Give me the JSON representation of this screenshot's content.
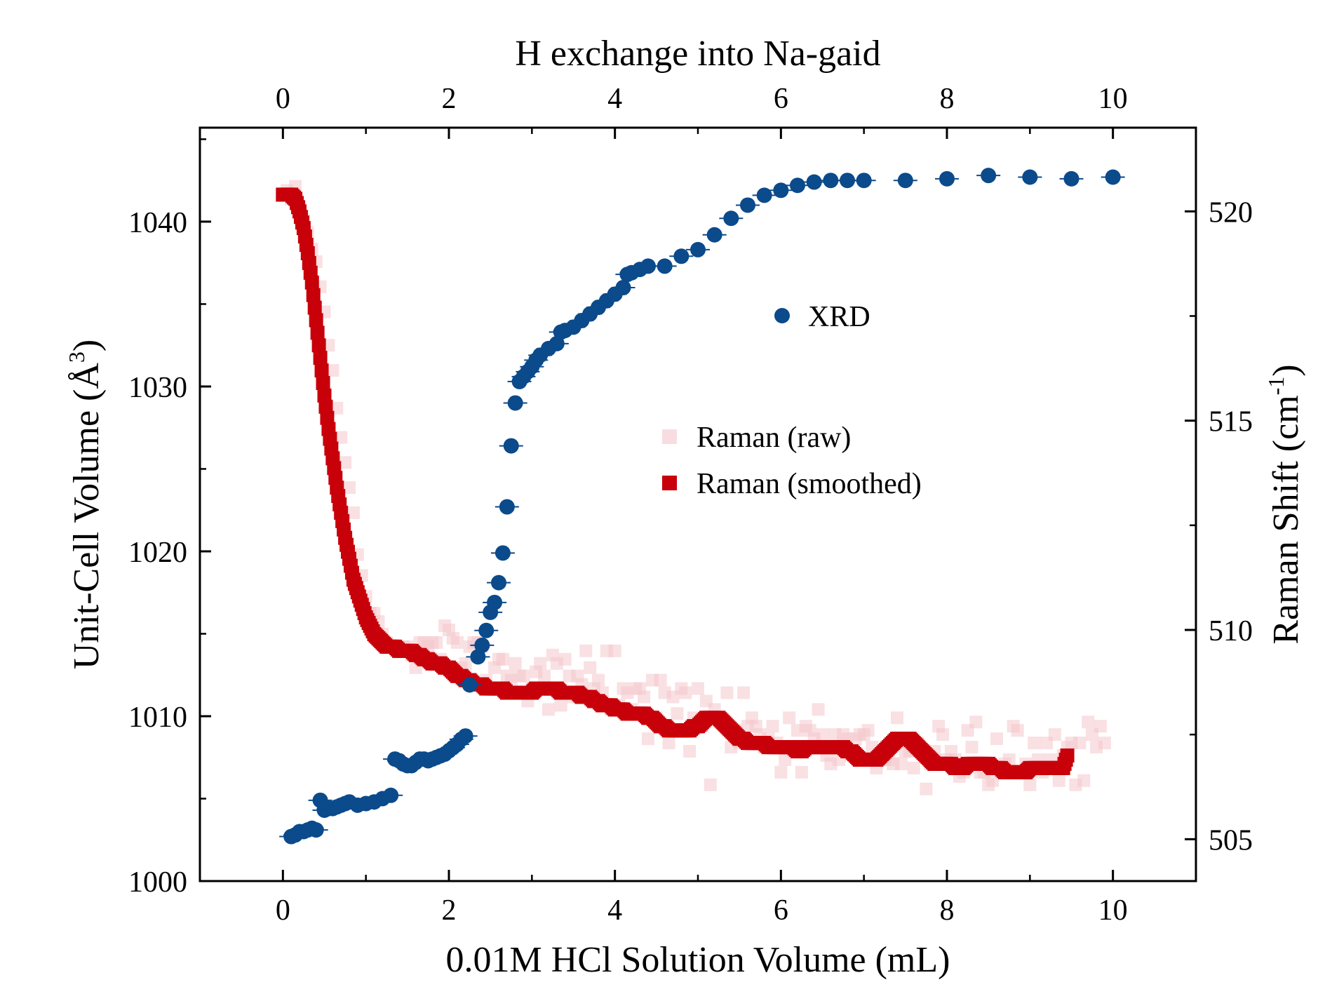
{
  "chart_data": {
    "type": "scatter",
    "title": "H exchange into Na-gaid",
    "xlabel": "0.01M HCl Solution Volume (mL)",
    "ylabel_left": "Unit-Cell Volume (Å",
    "ylabel_left_sup": "3",
    "ylabel_left_end": ")",
    "ylabel_right": "Raman Shift (cm",
    "ylabel_right_sup": "-1",
    "ylabel_right_end": ")",
    "xlim": [
      -1,
      11
    ],
    "ylim_left": [
      1000,
      1045.7
    ],
    "ylim_right": [
      504,
      522
    ],
    "x_ticks": [
      "0",
      "2",
      "4",
      "6",
      "8",
      "10"
    ],
    "x_tick_values": [
      0,
      2,
      4,
      6,
      8,
      10
    ],
    "y_left_ticks": [
      "1000",
      "1010",
      "1020",
      "1030",
      "1040"
    ],
    "y_left_tick_values": [
      1000,
      1010,
      1020,
      1030,
      1040
    ],
    "y_right_ticks": [
      "505",
      "510",
      "515",
      "520"
    ],
    "y_right_tick_values": [
      505,
      510,
      515,
      520
    ],
    "grid": false,
    "legend": [
      {
        "label": "XRD",
        "marker": "circle",
        "color": "#0b4a8b"
      },
      {
        "label": "Raman (raw)",
        "marker": "square",
        "color": "#f4c6cc"
      },
      {
        "label": "Raman (smoothed)",
        "marker": "square",
        "color": "#c8000a"
      }
    ],
    "series": [
      {
        "name": "XRD",
        "axis": "left",
        "color": "#0b4a8b",
        "points": [
          [
            0.1,
            1002.7
          ],
          [
            0.15,
            1002.8
          ],
          [
            0.2,
            1003
          ],
          [
            0.25,
            1003
          ],
          [
            0.3,
            1003.1
          ],
          [
            0.35,
            1003.2
          ],
          [
            0.4,
            1003.1
          ],
          [
            0.45,
            1004.9
          ],
          [
            0.5,
            1004.3
          ],
          [
            0.55,
            1004.4
          ],
          [
            0.6,
            1004.4
          ],
          [
            0.65,
            1004.5
          ],
          [
            0.7,
            1004.6
          ],
          [
            0.75,
            1004.7
          ],
          [
            0.8,
            1004.8
          ],
          [
            0.9,
            1004.6
          ],
          [
            1.0,
            1004.7
          ],
          [
            1.1,
            1004.8
          ],
          [
            1.2,
            1005
          ],
          [
            1.3,
            1005.2
          ],
          [
            1.35,
            1007.4
          ],
          [
            1.4,
            1007.3
          ],
          [
            1.45,
            1007.1
          ],
          [
            1.5,
            1007
          ],
          [
            1.55,
            1007
          ],
          [
            1.6,
            1007.2
          ],
          [
            1.65,
            1007.4
          ],
          [
            1.7,
            1007.4
          ],
          [
            1.75,
            1007.3
          ],
          [
            1.8,
            1007.4
          ],
          [
            1.85,
            1007.5
          ],
          [
            1.9,
            1007.6
          ],
          [
            1.95,
            1007.7
          ],
          [
            2.0,
            1007.9
          ],
          [
            2.05,
            1008.1
          ],
          [
            2.1,
            1008.3
          ],
          [
            2.15,
            1008.6
          ],
          [
            2.2,
            1008.8
          ],
          [
            2.25,
            1011.9
          ],
          [
            2.35,
            1013.6
          ],
          [
            2.4,
            1014.3
          ],
          [
            2.45,
            1015.2
          ],
          [
            2.5,
            1016.3
          ],
          [
            2.55,
            1016.9
          ],
          [
            2.6,
            1018.1
          ],
          [
            2.65,
            1019.9
          ],
          [
            2.7,
            1022.7
          ],
          [
            2.75,
            1026.4
          ],
          [
            2.8,
            1029
          ],
          [
            2.85,
            1030.3
          ],
          [
            2.9,
            1030.6
          ],
          [
            2.95,
            1030.9
          ],
          [
            3.0,
            1031.2
          ],
          [
            3.05,
            1031.6
          ],
          [
            3.1,
            1031.9
          ],
          [
            3.2,
            1032.3
          ],
          [
            3.3,
            1032.6
          ],
          [
            3.35,
            1033.3
          ],
          [
            3.4,
            1033.4
          ],
          [
            3.5,
            1033.6
          ],
          [
            3.6,
            1034
          ],
          [
            3.7,
            1034.4
          ],
          [
            3.8,
            1034.8
          ],
          [
            3.9,
            1035.2
          ],
          [
            4.0,
            1035.6
          ],
          [
            4.1,
            1036
          ],
          [
            4.15,
            1036.8
          ],
          [
            4.2,
            1036.9
          ],
          [
            4.3,
            1037.1
          ],
          [
            4.4,
            1037.3
          ],
          [
            4.6,
            1037.3
          ],
          [
            4.8,
            1037.9
          ],
          [
            5.0,
            1038.3
          ],
          [
            5.2,
            1039.2
          ],
          [
            5.4,
            1040.2
          ],
          [
            5.6,
            1041
          ],
          [
            5.8,
            1041.6
          ],
          [
            6.0,
            1041.9
          ],
          [
            6.2,
            1042.2
          ],
          [
            6.4,
            1042.4
          ],
          [
            6.6,
            1042.5
          ],
          [
            6.8,
            1042.5
          ],
          [
            7.0,
            1042.5
          ],
          [
            7.5,
            1042.5
          ],
          [
            8.0,
            1042.6
          ],
          [
            8.5,
            1042.8
          ],
          [
            9.0,
            1042.7
          ],
          [
            9.5,
            1042.6
          ],
          [
            10.0,
            1042.7
          ]
        ]
      },
      {
        "name": "Raman (raw)",
        "axis": "right",
        "color": "#f4c6cc",
        "x_start": 0,
        "x_step": 0.05,
        "values": [
          520.4,
          520.5,
          520.3,
          520.6,
          520.1,
          519.8,
          519.5,
          519.1,
          518.8,
          518.2,
          517.6,
          516.8,
          516.2,
          515.3,
          514.6,
          514,
          513.4,
          512.8,
          511.8,
          511.3,
          510.8,
          510.4,
          510.4,
          510.2,
          509.9,
          509.7,
          509.6,
          509.6,
          509.5,
          509.6,
          509.6,
          509.4,
          509.1,
          509.7,
          509.7,
          509.6,
          509.7,
          509.7,
          509.3,
          510.1,
          510,
          509.8,
          509.7,
          509.1,
          509.2,
          509.6,
          509.7,
          509.7,
          509.6,
          508.8,
          508.6,
          509.1,
          509.3,
          509.3,
          508.9,
          508.8,
          509.2,
          508.9,
          508.9,
          508.3,
          508.6,
          509,
          509.2,
          508.9,
          508.1,
          509.4,
          509.2,
          508.2,
          509.3,
          508.9,
          508.4,
          508.9,
          508.7,
          509.5,
          509.1,
          508.6,
          508.8,
          508.5,
          509.5,
          508.1,
          509.5,
          508.2,
          508.6,
          508.5,
          508.1,
          508.6,
          508.6,
          508.4,
          507.4,
          508.8,
          507.9,
          508.8,
          508.5,
          507.3,
          508.4,
          508,
          508.6,
          508.5,
          507.1,
          507.9,
          508.6,
          507.7,
          508.3,
          506.3,
          508.1,
          507.9,
          507.8,
          508.5,
          507.2,
          507.6,
          507.3,
          508.5,
          507.7,
          507.9,
          507.7,
          507.5,
          507.2,
          507.4,
          507.7,
          507.3,
          506.6,
          506.9,
          507.9,
          507.1,
          507.6,
          506.6,
          507.7,
          507.6,
          507.4,
          508.1,
          507.5,
          507,
          506.8,
          507.5,
          506.9,
          507.5,
          507.4,
          507,
          507.4,
          507.5,
          507.5,
          507.6,
          507.2,
          506.7,
          507,
          506.9,
          506.9,
          506.8,
          507.9,
          506.8,
          507.1,
          507.1,
          506.7,
          507.3,
          507.1,
          506.2,
          506.8,
          507.1,
          507.7,
          507.5,
          506.9,
          507.1,
          506.9,
          506.5,
          506.6,
          507.6,
          507.2,
          507.8,
          506.6,
          506.6,
          506.3,
          506.4,
          507.4,
          506.6,
          506.8,
          506.9,
          507.7,
          507.6,
          506.6,
          506.8,
          506.3,
          507.3,
          506.9,
          506.6,
          507.3,
          506.9,
          507.5,
          506.4,
          507,
          507.2,
          507.3,
          506.3,
          507.3,
          506.4,
          507.8,
          507.5,
          507.2,
          507.7,
          507.3
        ]
      },
      {
        "name": "Raman (smoothed)",
        "axis": "right",
        "color": "#c8000a",
        "x_start": 0,
        "x_step": 0.05,
        "values": [
          520.4,
          520.4,
          520.4,
          520.3,
          520.0,
          519.6,
          519.0,
          518.3,
          517.4,
          516.5,
          515.6,
          514.8,
          514.1,
          513.4,
          512.8,
          512.2,
          511.7,
          511.2,
          510.9,
          510.6,
          510.3,
          510.1,
          509.9,
          509.8,
          509.7,
          509.6,
          509.6,
          509.6,
          509.5,
          509.5,
          509.5,
          509.5,
          509.4,
          509.4,
          509.3,
          509.3,
          509.2,
          509.2,
          509.2,
          509.1,
          509.1,
          509.0,
          508.9,
          508.9,
          508.8,
          508.8,
          508.7,
          508.7,
          508.7,
          508.6,
          508.6,
          508.6,
          508.6,
          508.6,
          508.5,
          508.5,
          508.5,
          508.5,
          508.5,
          508.5,
          508.5,
          508.6,
          508.6,
          508.6,
          508.6,
          508.6,
          508.6,
          508.5,
          508.5,
          508.5,
          508.5,
          508.5,
          508.4,
          508.4,
          508.4,
          508.3,
          508.3,
          508.2,
          508.2,
          508.2,
          508.1,
          508.1,
          508.1,
          508.0,
          508.0,
          508.0,
          508.0,
          508.0,
          507.9,
          507.9,
          507.8,
          507.7,
          507.7,
          507.6,
          507.6,
          507.6,
          507.6,
          507.6,
          507.6,
          507.7,
          507.7,
          507.8,
          507.9,
          507.9,
          507.9,
          507.9,
          507.8,
          507.7,
          507.6,
          507.5,
          507.4,
          507.4,
          507.3,
          507.3,
          507.3,
          507.3,
          507.3,
          507.2,
          507.2,
          507.2,
          507.2,
          507.2,
          507.2,
          507.2,
          507.1,
          507.1,
          507.2,
          507.2,
          507.2,
          507.2,
          507.2,
          507.2,
          507.2,
          507.2,
          507.2,
          507.2,
          507.1,
          507.1,
          507.0,
          506.9,
          506.9,
          506.9,
          506.9,
          506.9,
          507.0,
          507.1,
          507.2,
          507.3,
          507.4,
          507.4,
          507.4,
          507.4,
          507.3,
          507.2,
          507.1,
          507.0,
          506.9,
          506.8,
          506.8,
          506.8,
          506.8,
          506.8,
          506.7,
          506.7,
          506.7,
          506.8,
          506.8,
          506.8,
          506.8,
          506.8,
          506.8,
          506.7,
          506.7,
          506.7,
          506.6,
          506.6,
          506.6,
          506.6,
          506.6,
          506.6,
          506.7,
          506.7,
          506.7,
          506.7,
          506.7,
          506.7,
          506.7,
          506.7,
          506.7,
          507.0
        ]
      }
    ]
  }
}
